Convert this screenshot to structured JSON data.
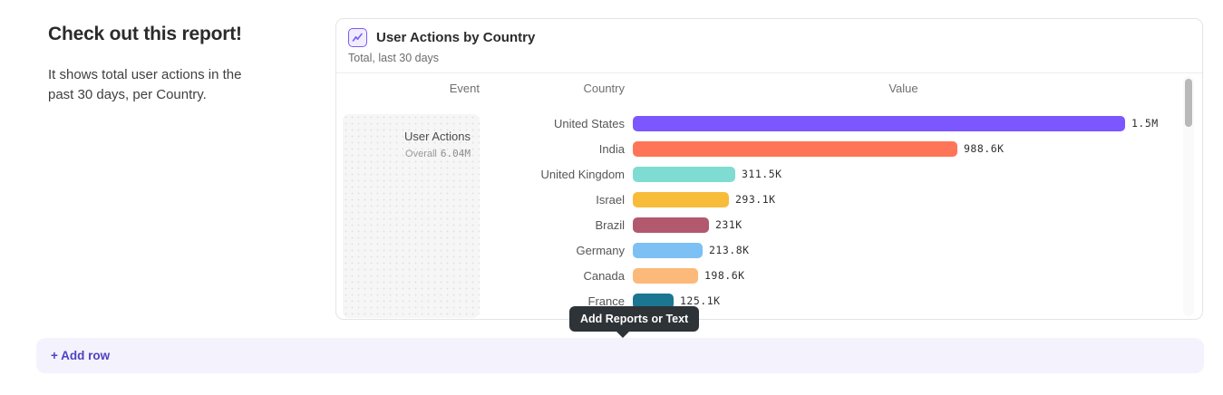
{
  "intro": {
    "heading": "Check out this report!",
    "body": "It shows total user actions in the past 30 days, per Country."
  },
  "report_card": {
    "icon": "insights-chart-icon",
    "title": "User Actions by Country",
    "subtitle": "Total, last 30 days",
    "table": {
      "headers": {
        "event": "Event",
        "country": "Country",
        "value": "Value"
      },
      "event_cell": {
        "event_name": "User Actions",
        "overall_label": "Overall",
        "overall_value": "6.04M"
      }
    }
  },
  "chart_data": {
    "type": "bar",
    "orientation": "horizontal",
    "title": "User Actions by Country",
    "subtitle": "Total, last 30 days",
    "event": "User Actions",
    "overall_total": "6.04M",
    "categories": [
      "United States",
      "India",
      "United Kingdom",
      "Israel",
      "Brazil",
      "Germany",
      "Canada",
      "France"
    ],
    "values": [
      1500000,
      988600,
      311500,
      293100,
      231000,
      213800,
      198600,
      125100
    ],
    "value_labels": [
      "1.5M",
      "988.6K",
      "311.5K",
      "293.1K",
      "231K",
      "213.8K",
      "198.6K",
      "125.1K"
    ],
    "bar_colors": [
      "#7C56FF",
      "#FF7557",
      "#7FDCD3",
      "#F8BC3B",
      "#B2596E",
      "#7CC0F4",
      "#FCB97A",
      "#1A7691"
    ],
    "xlim": [
      0,
      1500000
    ],
    "grid": false,
    "legend": false
  },
  "tooltip": {
    "label": "Add Reports or Text",
    "background": "#2e3338",
    "text_color": "#ffffff"
  },
  "add_row": {
    "label": "+ Add row",
    "text_color": "#4d42c2",
    "background": "#f4f2fc"
  },
  "colors": {
    "accent_purple": "#7b5bf5",
    "card_border": "#e4e4e4"
  }
}
